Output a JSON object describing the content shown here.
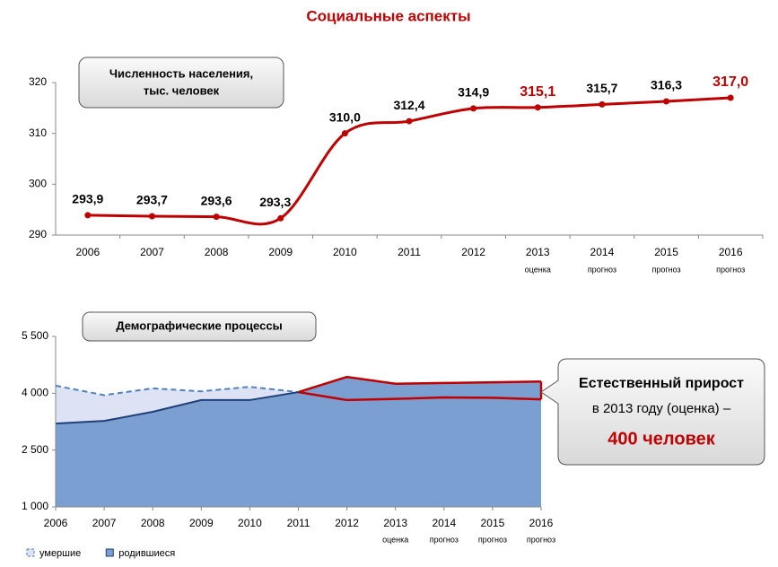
{
  "title": "Социальные аспекты",
  "callout": {
    "line1": "Естественный прирост",
    "line2": "в 2013 году (оценка) –",
    "line3": "400 человек"
  },
  "chart_data": [
    {
      "type": "line",
      "annotation": [
        "Численность населения,",
        "тыс. человек"
      ],
      "categories": [
        "2006",
        "2007",
        "2008",
        "2009",
        "2010",
        "2011",
        "2012",
        "2013",
        "2014",
        "2015",
        "2016"
      ],
      "sublabels": [
        null,
        null,
        null,
        null,
        null,
        null,
        null,
        "оценка",
        "прогноз",
        "прогноз",
        "прогноз"
      ],
      "values": [
        293.9,
        293.7,
        293.6,
        293.3,
        310.0,
        312.4,
        314.9,
        315.1,
        315.7,
        316.3,
        317.0
      ],
      "value_labels": [
        "293,9",
        "293,7",
        "293,6",
        "293,3",
        "310,0",
        "312,4",
        "314,9",
        "315,1",
        "315,7",
        "316,3",
        "317,0"
      ],
      "value_label_colors": [
        "#000",
        "#000",
        "#000",
        "#000",
        "#000",
        "#000",
        "#000",
        "#c00000",
        "#000",
        "#000",
        "#c00000"
      ],
      "color": "#c00000",
      "ylim": [
        290,
        320
      ],
      "yticks": [
        290,
        300,
        310,
        320
      ]
    },
    {
      "type": "area",
      "annotation": [
        "Демографические процессы"
      ],
      "x": [
        2006,
        2007,
        2008,
        2009,
        2010,
        2011,
        2012,
        2013,
        2014,
        2015,
        2016
      ],
      "sublabels": [
        null,
        null,
        null,
        null,
        null,
        null,
        null,
        "оценка",
        "прогноз",
        "прогноз",
        "прогноз"
      ],
      "xlim": [
        2006,
        2016
      ],
      "series": [
        {
          "name": "умершие",
          "color": "#dde3f5",
          "line_color": "#4f81bd",
          "values": [
            4200,
            3950,
            4130,
            4050,
            4170,
            4030,
            3820,
            3850,
            3890,
            3880,
            3840
          ]
        },
        {
          "name": "родившиеся",
          "color": "#7a9fd0",
          "line_color": "#1f3f7a",
          "values": [
            3200,
            3270,
            3510,
            3820,
            3820,
            4030,
            4430,
            4250,
            4270,
            4290,
            4310
          ]
        }
      ],
      "highlight_color": "#c00000",
      "ylim": [
        1000,
        5500
      ],
      "yticks": [
        {
          "value": 1000,
          "label": "1 000"
        },
        {
          "value": 2500,
          "label": "2 500"
        },
        {
          "value": 4000,
          "label": "4 000"
        },
        {
          "value": 5500,
          "label": "5 500"
        }
      ]
    }
  ]
}
